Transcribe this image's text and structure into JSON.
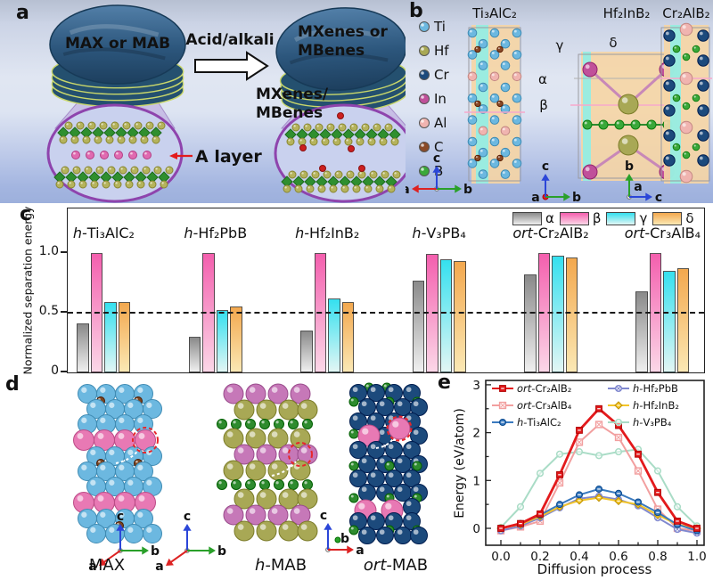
{
  "panels": {
    "a": "a",
    "b": "b",
    "c": "c",
    "d": "d",
    "e": "e"
  },
  "panel_a": {
    "left_disk_label": "MAX or MAB",
    "arrow_label": "Acid/alkali",
    "product_line1": "MXenes/",
    "product_line2": "MBenes",
    "right_disk_line1": "MXenes or",
    "right_disk_line2": "MBenes",
    "a_layer_label": "A layer"
  },
  "panel_b": {
    "legend": [
      {
        "element": "Ti",
        "color": "#6cb8e0"
      },
      {
        "element": "Hf",
        "color": "#a8a855"
      },
      {
        "element": "Cr",
        "color": "#1c4a7c"
      },
      {
        "element": "In",
        "color": "#c0509a"
      },
      {
        "element": "Al",
        "color": "#f0b4b0"
      },
      {
        "element": "C",
        "color": "#8a4a28"
      },
      {
        "element": "B",
        "color": "#3aa83a"
      }
    ],
    "structures": [
      {
        "title": "Ti₃AlC₂"
      },
      {
        "title": "Hf₂InB₂"
      },
      {
        "title": "Cr₂AlB₂"
      }
    ],
    "plane_labels": {
      "alpha": "α",
      "beta": "β",
      "gamma": "γ",
      "delta": "δ"
    },
    "axis_labels": {
      "a": "a",
      "b": "b",
      "c": "c"
    }
  },
  "panel_d": {
    "labels": [
      {
        "prefix": "",
        "name": "MAX"
      },
      {
        "prefix": "h-",
        "name": "MAB"
      },
      {
        "prefix": "ort-",
        "name": "MAB"
      }
    ],
    "axis_labels": {
      "a": "a",
      "b": "b",
      "c": "c"
    }
  },
  "chart_data": [
    {
      "type": "bar",
      "panel": "c",
      "title": "",
      "xlabel": "",
      "ylabel": "Normalized separation energy",
      "yticks": [
        "0",
        "0.5",
        "1.0"
      ],
      "ytick_values": [
        0,
        0.5,
        1.0
      ],
      "ylim": [
        0,
        1.37
      ],
      "reference_line": 0.5,
      "grid": false,
      "legend_position": "top-right",
      "legend": [
        {
          "label": "α",
          "color_top": "#8a8a8a",
          "color_bottom": "#efefef"
        },
        {
          "label": "β",
          "color_top": "#f45fae",
          "color_bottom": "#fbd7e7"
        },
        {
          "label": "γ",
          "color_top": "#35e0ef",
          "color_bottom": "#e2f6f4"
        },
        {
          "label": "δ",
          "color_top": "#f3a84e",
          "color_bottom": "#fbe8b4"
        }
      ],
      "groups": [
        {
          "prefix": "h-",
          "formula": "Ti₃AlC₂",
          "values": [
            0.41,
            1.0,
            0.59,
            0.59
          ]
        },
        {
          "prefix": "h-",
          "formula": "Hf₂PbB",
          "values": [
            0.3,
            1.0,
            0.52,
            0.55
          ]
        },
        {
          "prefix": "h-",
          "formula": "Hf₂InB₂",
          "values": [
            0.35,
            1.0,
            0.62,
            0.59
          ]
        },
        {
          "prefix": "h-",
          "formula": "V₃PB₄",
          "values": [
            0.77,
            0.99,
            0.95,
            0.93
          ]
        },
        {
          "prefix": "ort-",
          "formula": "Cr₂AlB₂",
          "values": [
            0.82,
            1.0,
            0.98,
            0.96
          ]
        },
        {
          "prefix": "ort-",
          "formula": "Cr₃AlB₄",
          "values": [
            0.68,
            1.0,
            0.85,
            0.87
          ]
        }
      ]
    },
    {
      "type": "line",
      "panel": "e",
      "xlabel": "Diffusion process",
      "ylabel": "Energy (eV/atom)",
      "xticks": [
        "0.0",
        "0.2",
        "0.4",
        "0.6",
        "0.8",
        "1.0"
      ],
      "xtick_values": [
        0,
        0.2,
        0.4,
        0.6,
        0.8,
        1.0
      ],
      "yticks": [
        "0",
        "1",
        "2",
        "3"
      ],
      "ytick_values": [
        0,
        1,
        2,
        3
      ],
      "xlim": [
        -0.08,
        1.08
      ],
      "ylim": [
        -0.35,
        3.05
      ],
      "grid": false,
      "legend_position": "top",
      "x": [
        0,
        0.1,
        0.2,
        0.3,
        0.4,
        0.5,
        0.6,
        0.7,
        0.8,
        0.9,
        1.0
      ],
      "series": [
        {
          "prefix": "ort-",
          "formula": "Cr₂AlB₂",
          "color": "#e31a1c",
          "marker": "square",
          "width": 2.8,
          "values": [
            0,
            0.1,
            0.3,
            1.12,
            2.05,
            2.5,
            2.15,
            1.55,
            0.75,
            0.15,
            0
          ]
        },
        {
          "prefix": "ort-",
          "formula": "Cr₃AlB₄",
          "color": "#f29f9f",
          "marker": "square-open",
          "width": 2,
          "values": [
            -0.05,
            0.03,
            0.15,
            0.95,
            1.8,
            2.17,
            1.9,
            1.2,
            0.4,
            0,
            -0.05
          ]
        },
        {
          "prefix": "h-",
          "formula": "Ti₃AlC₂",
          "color": "#3a7abf",
          "marker": "circle",
          "width": 2,
          "values": [
            0,
            0.1,
            0.28,
            0.5,
            0.7,
            0.82,
            0.73,
            0.55,
            0.33,
            0.08,
            -0.05
          ]
        },
        {
          "prefix": "h-",
          "formula": "Hf₂PbB",
          "color": "#8088cf",
          "marker": "circle-x",
          "width": 2,
          "values": [
            -0.05,
            0.05,
            0.22,
            0.43,
            0.62,
            0.67,
            0.6,
            0.47,
            0.22,
            -0.02,
            -0.1
          ]
        },
        {
          "prefix": "h-",
          "formula": "Hf₂InB₂",
          "color": "#f3c52a",
          "marker": "diamond",
          "width": 2,
          "values": [
            0,
            0.08,
            0.25,
            0.45,
            0.58,
            0.64,
            0.57,
            0.5,
            0.28,
            0.08,
            0
          ]
        },
        {
          "prefix": "h-",
          "formula": "V₃PB₄",
          "color": "#a9dcc6",
          "marker": "circle-open",
          "width": 2,
          "values": [
            0.02,
            0.45,
            1.15,
            1.55,
            1.6,
            1.52,
            1.6,
            1.65,
            1.2,
            0.45,
            0.05
          ]
        }
      ],
      "legend_columns": [
        [
          0,
          1,
          2
        ],
        [
          3,
          4,
          5
        ]
      ]
    }
  ]
}
